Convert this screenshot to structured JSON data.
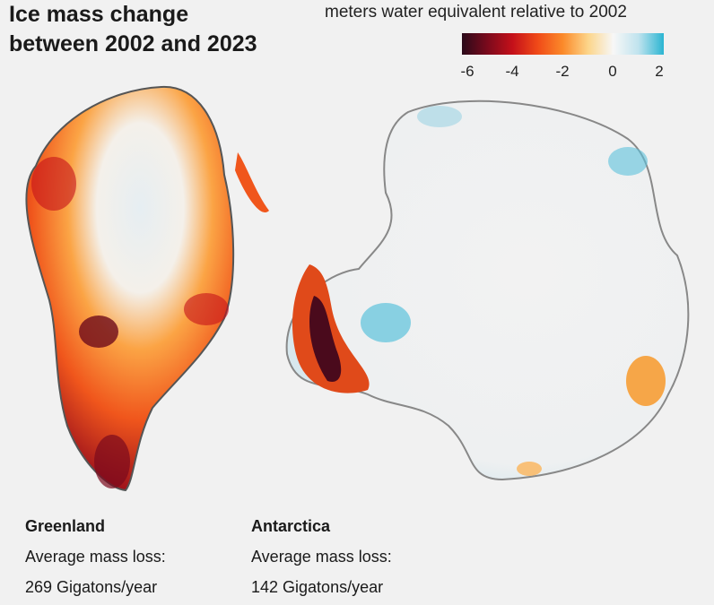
{
  "title": {
    "line1": "Ice mass change",
    "line2": "between 2002 and 2023"
  },
  "legend": {
    "title": "meters water equivalent relative to 2002",
    "ticks": [
      "-6",
      "-4",
      "-2",
      "0",
      "2"
    ],
    "range": [
      -6,
      2
    ],
    "colors": [
      "#2a0a1a",
      "#7a0a1c",
      "#c4101a",
      "#f04a18",
      "#fb8a2a",
      "#fcd58a",
      "#f7f7f7",
      "#bfe3ee",
      "#2bb5d2"
    ]
  },
  "regions": [
    {
      "name": "Greenland",
      "label": "Average mass loss:",
      "value": "269 Gigatons/year"
    },
    {
      "name": "Antarctica",
      "label": "Average mass loss:",
      "value": "142 Gigatons/year"
    }
  ]
}
